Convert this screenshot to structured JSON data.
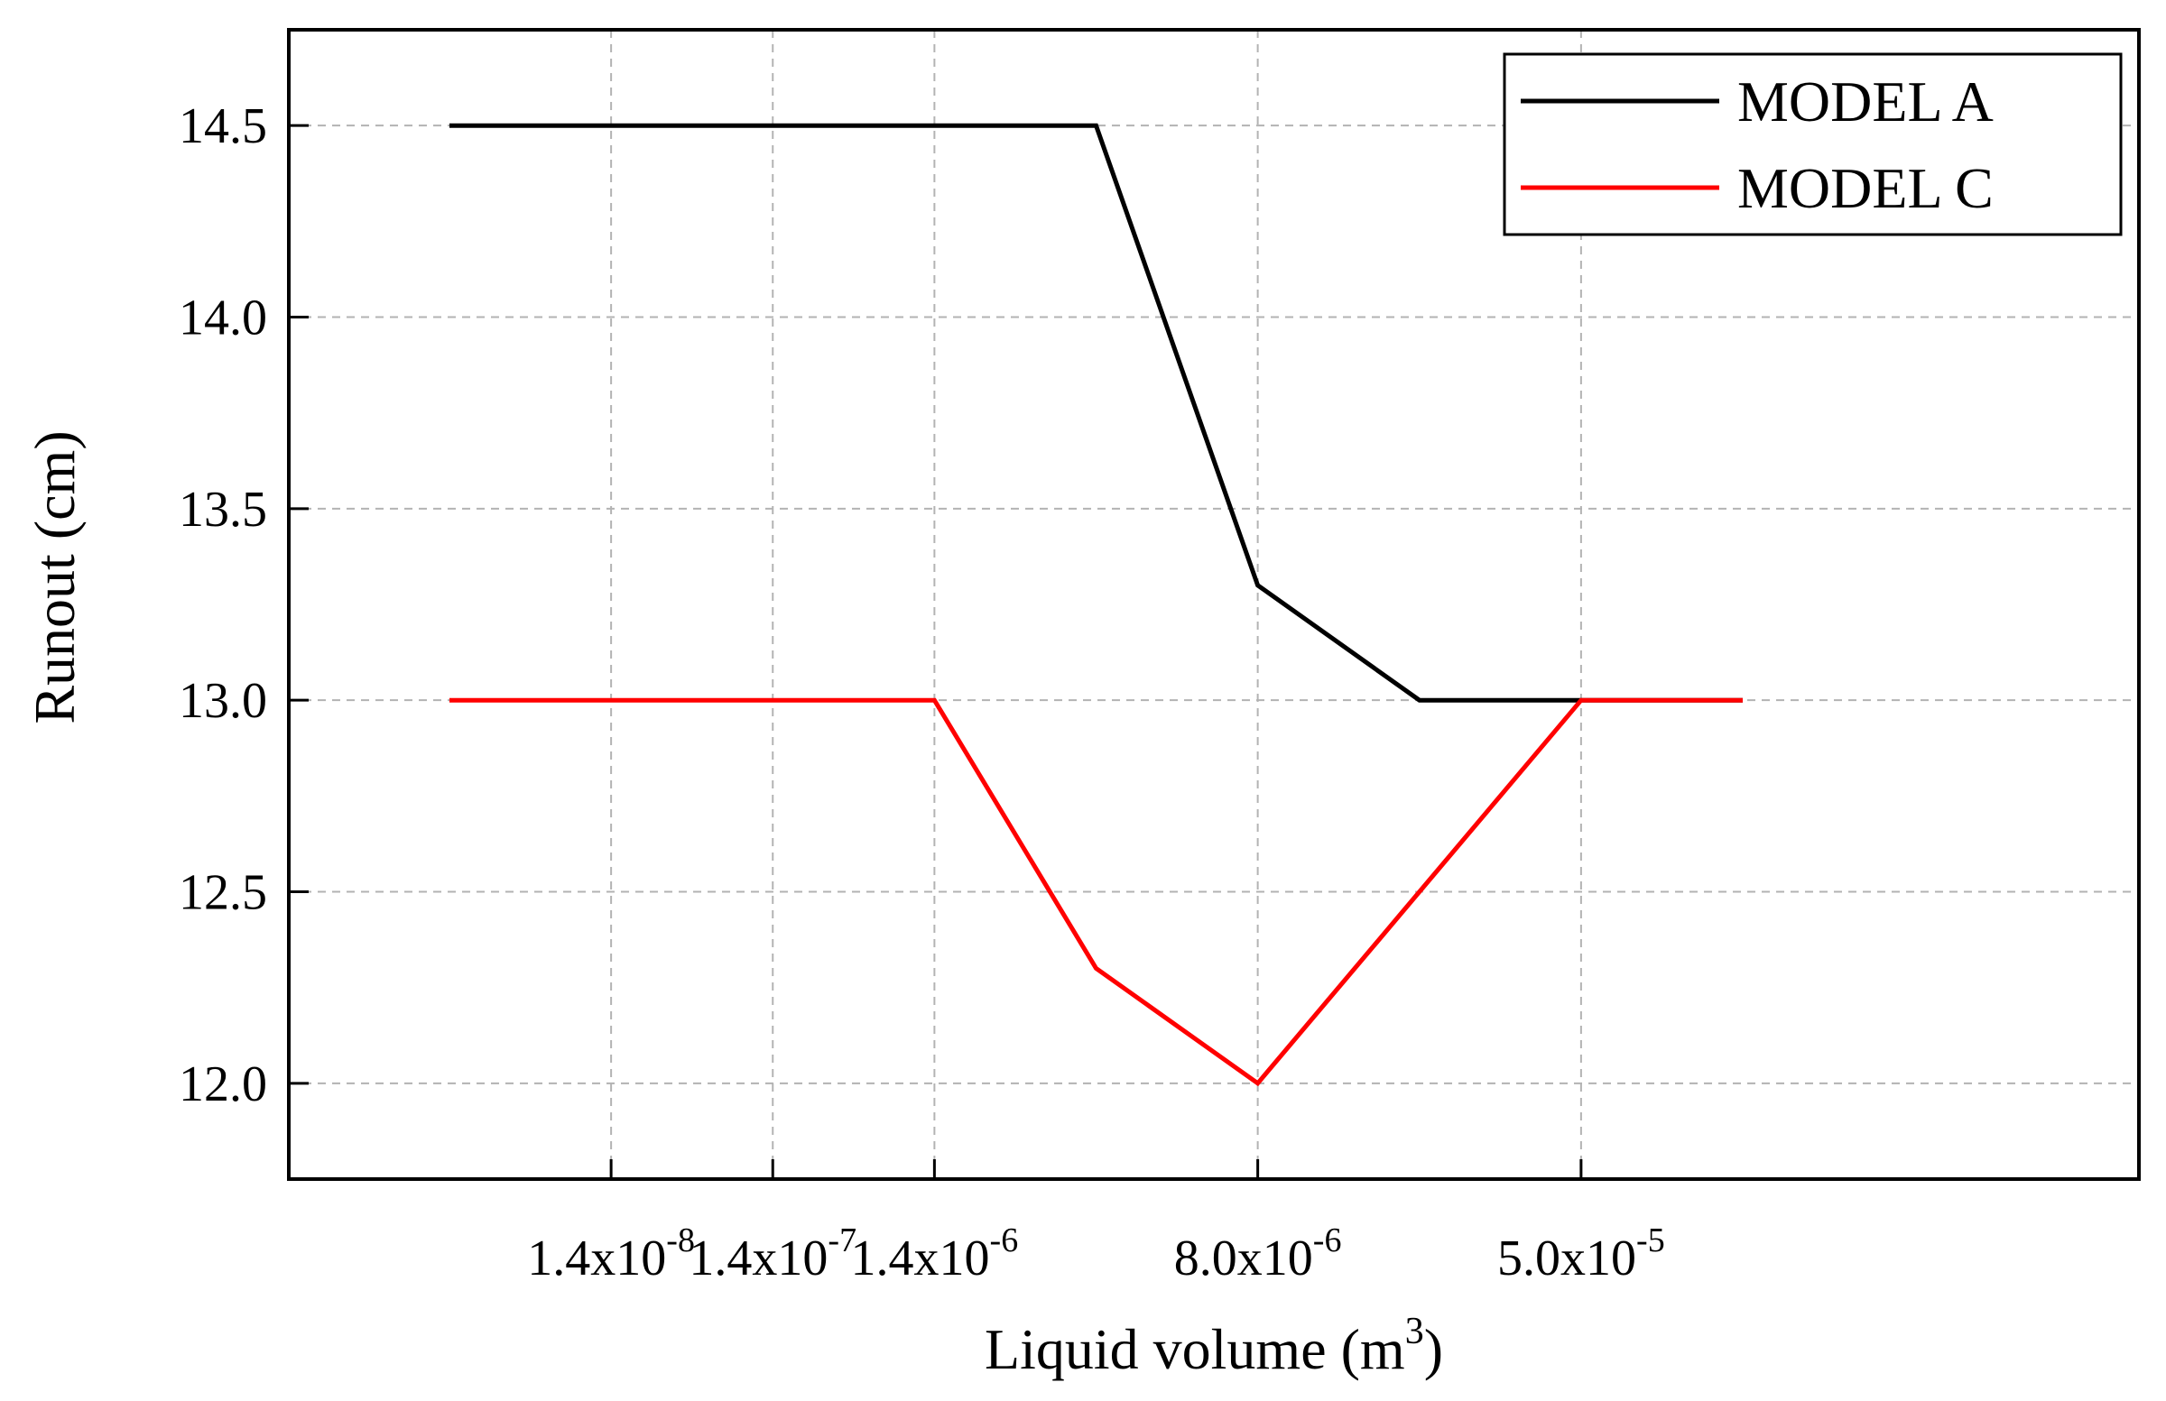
{
  "chart_data": {
    "type": "line",
    "xlabel": {
      "text": "Liquid volume (m",
      "sup": "3",
      "suffix": ")"
    },
    "ylabel": "Runout (cm)",
    "categories": [
      "",
      "1.4x10^-8",
      "1.4x10^-7",
      "1.4x10^-6",
      "",
      "8.0x10^-6",
      "",
      "5.0x10^-5",
      ""
    ],
    "x_tick_labels": [
      {
        "category_index": 1,
        "mantissa": "1.4x10",
        "exponent": "-8"
      },
      {
        "category_index": 2,
        "mantissa": "1.4x10",
        "exponent": "-7"
      },
      {
        "category_index": 3,
        "mantissa": "1.4x10",
        "exponent": "-6"
      },
      {
        "category_index": 5,
        "mantissa": "8.0x10",
        "exponent": "-6"
      },
      {
        "category_index": 7,
        "mantissa": "5.0x10",
        "exponent": "-5"
      }
    ],
    "y_ticks": [
      {
        "value": 12.0,
        "label": "12.0"
      },
      {
        "value": 12.5,
        "label": "12.5"
      },
      {
        "value": 13.0,
        "label": "13.0"
      },
      {
        "value": 13.5,
        "label": "13.5"
      },
      {
        "value": 14.0,
        "label": "14.0"
      },
      {
        "value": 14.5,
        "label": "14.5"
      }
    ],
    "ylim": [
      11.75,
      14.75
    ],
    "grid": true,
    "legend_position": "top-right",
    "series": [
      {
        "name": "MODEL A",
        "color": "#000000",
        "values": [
          14.5,
          14.5,
          14.5,
          14.5,
          14.5,
          13.3,
          13.0,
          13.0,
          13.0
        ]
      },
      {
        "name": "MODEL C",
        "color": "#ff0000",
        "values": [
          13.0,
          13.0,
          13.0,
          13.0,
          12.3,
          12.0,
          12.5,
          13.0,
          13.0
        ]
      }
    ]
  }
}
